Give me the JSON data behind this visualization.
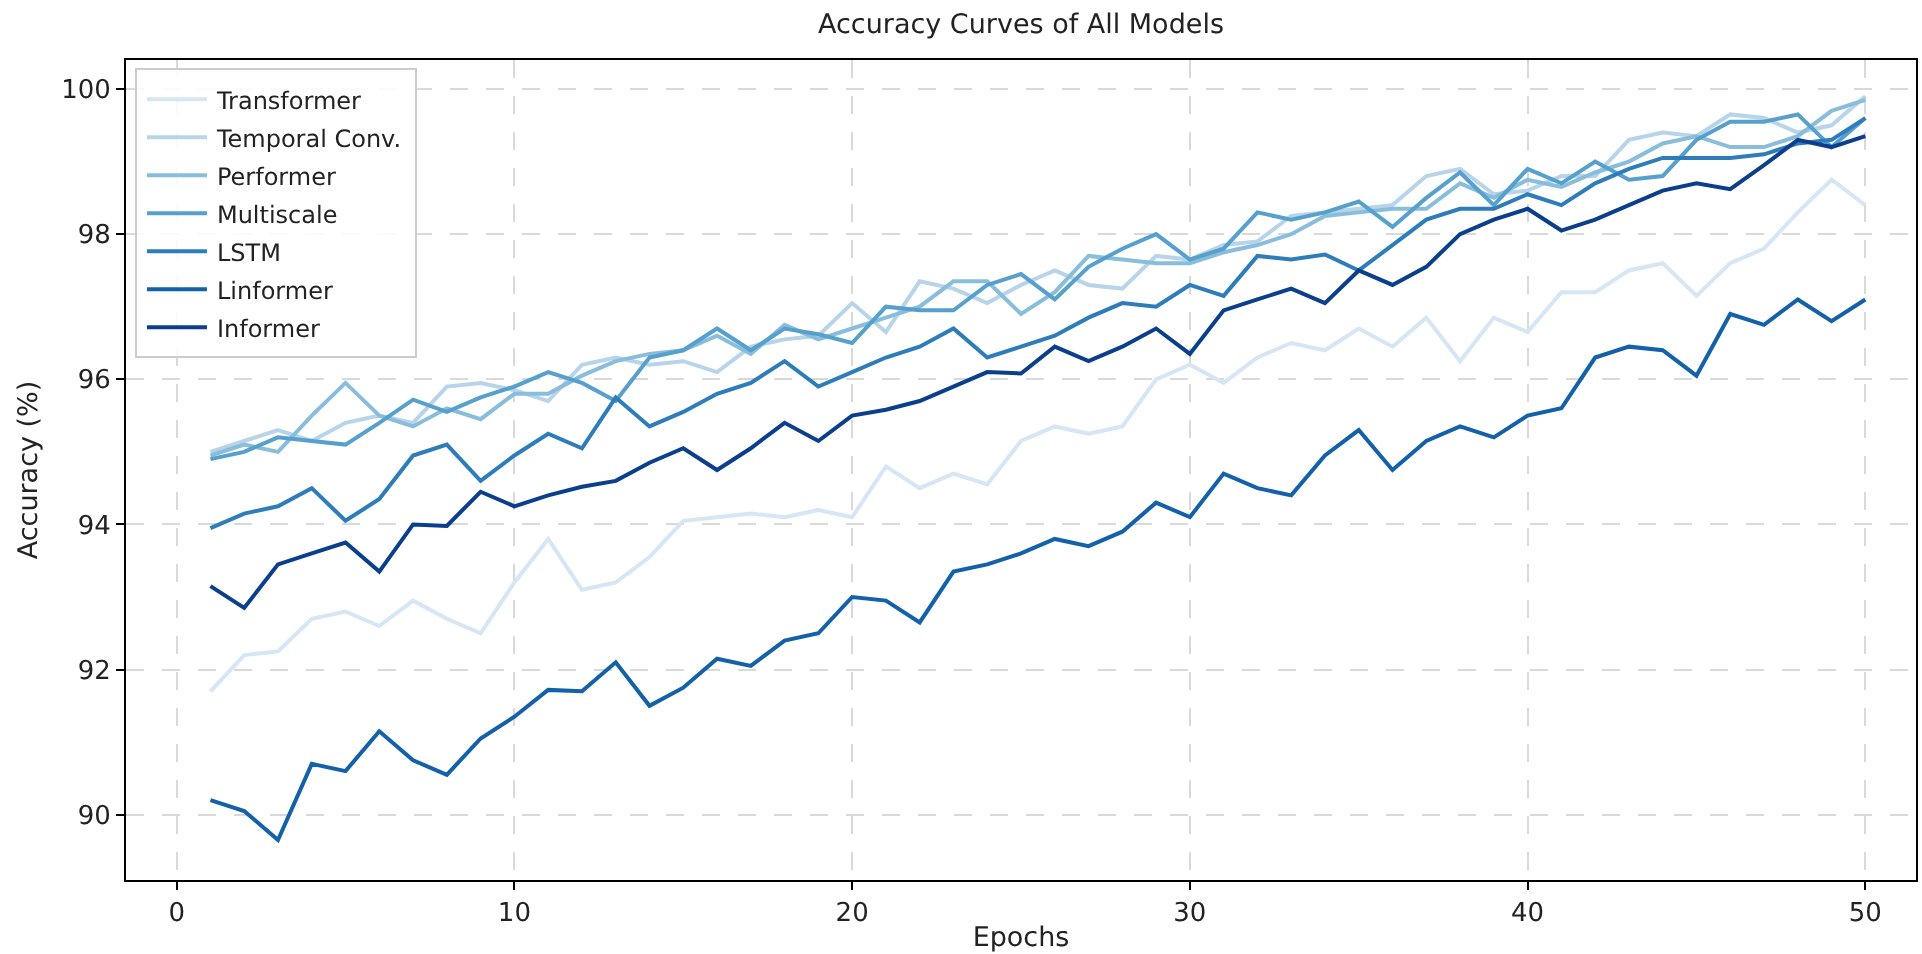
{
  "chart_data": {
    "type": "line",
    "title": "Accuracy Curves of All Models",
    "xlabel": "Epochs",
    "ylabel": "Accuracy (%)",
    "x": [
      1,
      2,
      3,
      4,
      5,
      6,
      7,
      8,
      9,
      10,
      11,
      12,
      13,
      14,
      15,
      16,
      17,
      18,
      19,
      20,
      21,
      22,
      23,
      24,
      25,
      26,
      27,
      28,
      29,
      30,
      31,
      32,
      33,
      34,
      35,
      36,
      37,
      38,
      39,
      40,
      41,
      42,
      43,
      44,
      45,
      46,
      47,
      48,
      49,
      50
    ],
    "xlim": [
      -1.5,
      51.5
    ],
    "xticks": [
      0,
      10,
      20,
      30,
      40,
      50
    ],
    "ylim": [
      89.1,
      100.4
    ],
    "yticks": [
      90,
      92,
      94,
      96,
      98,
      100
    ],
    "grid": true,
    "legend": "top left",
    "line_style": "solid",
    "marker": "none",
    "series": [
      {
        "name": "Transformer",
        "color": "#d6e6f5",
        "values": [
          91.7,
          92.2,
          92.25,
          92.7,
          92.8,
          92.6,
          92.95,
          92.7,
          92.5,
          93.2,
          93.8,
          93.1,
          93.2,
          93.55,
          94.05,
          94.1,
          94.15,
          94.1,
          94.2,
          94.1,
          94.8,
          94.5,
          94.7,
          94.55,
          95.15,
          95.35,
          95.25,
          95.35,
          96.0,
          96.2,
          95.95,
          96.3,
          96.5,
          96.4,
          96.7,
          96.45,
          96.85,
          96.25,
          96.85,
          96.65,
          97.2,
          97.2,
          97.5,
          97.6,
          97.15,
          97.6,
          97.8,
          98.3,
          98.75,
          98.4
        ]
      },
      {
        "name": "Temporal Conv.",
        "color": "#b7d4ea",
        "values": [
          95.0,
          95.15,
          95.3,
          95.15,
          95.4,
          95.5,
          95.4,
          95.9,
          95.95,
          95.85,
          95.7,
          96.2,
          96.3,
          96.2,
          96.25,
          96.1,
          96.45,
          96.55,
          96.6,
          97.05,
          96.65,
          97.35,
          97.25,
          97.05,
          97.3,
          97.5,
          97.3,
          97.25,
          97.7,
          97.65,
          97.85,
          97.9,
          98.25,
          98.3,
          98.35,
          98.4,
          98.8,
          98.9,
          98.55,
          98.6,
          98.8,
          98.8,
          99.3,
          99.4,
          99.35,
          99.65,
          99.6,
          99.4,
          99.5,
          99.9
        ]
      },
      {
        "name": "Performer",
        "color": "#88bedc",
        "values": [
          94.95,
          95.1,
          95.0,
          95.5,
          95.95,
          95.5,
          95.35,
          95.6,
          95.45,
          95.8,
          95.8,
          96.05,
          96.25,
          96.35,
          96.4,
          96.6,
          96.35,
          96.75,
          96.55,
          96.7,
          96.85,
          97.0,
          97.35,
          97.35,
          96.9,
          97.2,
          97.7,
          97.65,
          97.6,
          97.6,
          97.75,
          97.85,
          98.0,
          98.25,
          98.3,
          98.35,
          98.35,
          98.7,
          98.5,
          98.75,
          98.65,
          98.85,
          99.0,
          99.25,
          99.35,
          99.2,
          99.2,
          99.35,
          99.7,
          99.85
        ]
      },
      {
        "name": "Multiscale",
        "color": "#56a0ce",
        "values": [
          94.9,
          95.0,
          95.2,
          95.15,
          95.1,
          95.4,
          95.72,
          95.55,
          95.75,
          95.9,
          96.1,
          95.95,
          95.7,
          96.3,
          96.4,
          96.7,
          96.4,
          96.7,
          96.62,
          96.5,
          97.0,
          96.95,
          96.95,
          97.3,
          97.45,
          97.1,
          97.55,
          97.8,
          98.0,
          97.65,
          97.8,
          98.3,
          98.2,
          98.3,
          98.45,
          98.1,
          98.5,
          98.85,
          98.4,
          98.9,
          98.7,
          99.0,
          98.75,
          98.8,
          99.3,
          99.55,
          99.55,
          99.65,
          99.2,
          99.6
        ]
      },
      {
        "name": "LSTM",
        "color": "#2d7dbb",
        "values": [
          93.95,
          94.15,
          94.25,
          94.5,
          94.05,
          94.35,
          94.95,
          95.1,
          94.6,
          94.95,
          95.25,
          95.05,
          95.75,
          95.35,
          95.55,
          95.8,
          95.95,
          96.25,
          95.9,
          96.1,
          96.3,
          96.45,
          96.7,
          96.3,
          96.45,
          96.6,
          96.85,
          97.05,
          97.0,
          97.3,
          97.15,
          97.7,
          97.65,
          97.72,
          97.5,
          97.85,
          98.2,
          98.35,
          98.35,
          98.55,
          98.4,
          98.7,
          98.9,
          99.05,
          99.05,
          99.05,
          99.1,
          99.25,
          99.3,
          99.6
        ]
      },
      {
        "name": "Linformer",
        "color": "#1361a9",
        "values": [
          90.2,
          90.05,
          89.65,
          90.7,
          90.6,
          91.15,
          90.75,
          90.55,
          91.05,
          91.35,
          91.72,
          91.7,
          92.1,
          91.5,
          91.75,
          92.15,
          92.05,
          92.4,
          92.5,
          93.0,
          92.95,
          92.65,
          93.35,
          93.45,
          93.6,
          93.8,
          93.7,
          93.9,
          94.3,
          94.1,
          94.7,
          94.5,
          94.4,
          94.95,
          95.3,
          94.75,
          95.15,
          95.35,
          95.2,
          95.5,
          95.6,
          96.3,
          96.45,
          96.4,
          96.05,
          96.9,
          96.75,
          97.1,
          96.8,
          97.1
        ]
      },
      {
        "name": "Informer",
        "color": "#0a3f8c",
        "values": [
          93.15,
          92.85,
          93.45,
          93.6,
          93.75,
          93.35,
          94.0,
          93.98,
          94.45,
          94.25,
          94.4,
          94.52,
          94.6,
          94.85,
          95.05,
          94.75,
          95.05,
          95.4,
          95.15,
          95.5,
          95.58,
          95.7,
          95.9,
          96.1,
          96.08,
          96.45,
          96.25,
          96.45,
          96.7,
          96.35,
          96.95,
          97.1,
          97.25,
          97.05,
          97.5,
          97.3,
          97.55,
          98.0,
          98.2,
          98.35,
          98.05,
          98.2,
          98.4,
          98.6,
          98.7,
          98.62,
          98.95,
          99.3,
          99.2,
          99.35
        ]
      }
    ]
  }
}
